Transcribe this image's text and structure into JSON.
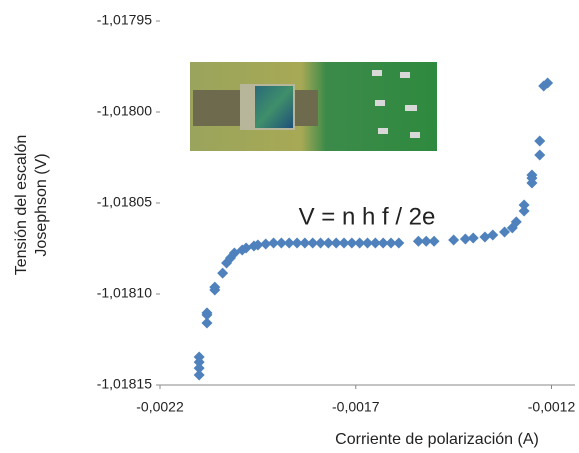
{
  "chart_data": {
    "type": "scatter",
    "xlabel": "Corriente de polarización (A)",
    "ylabel": [
      "Tensión del escalón",
      "Josephson (V)"
    ],
    "annotation": "V = n h f / 2e",
    "color": "#4f81bd",
    "xlim": [
      -0.0022,
      -0.00114
    ],
    "ylim": [
      -1.01815,
      -1.01795
    ],
    "xticks": [
      {
        "value": -0.0022,
        "label": "-0,0022"
      },
      {
        "value": -0.0017,
        "label": "-0,0017"
      },
      {
        "value": -0.0012,
        "label": "-0,0012"
      }
    ],
    "yticks": [
      {
        "value": -1.01815,
        "label": "-1,01815"
      },
      {
        "value": -1.0181,
        "label": "-1,01810"
      },
      {
        "value": -1.01805,
        "label": "-1,01805"
      },
      {
        "value": -1.018,
        "label": "-1,01800"
      },
      {
        "value": -1.01795,
        "label": "-1,01795"
      }
    ],
    "grid": false,
    "x": [
      -0.0021,
      -0.0021,
      -0.0021,
      -0.0021,
      -0.00208,
      -0.00208,
      -0.00208,
      -0.00206,
      -0.00206,
      -0.00204,
      -0.00203,
      -0.00202,
      -0.00201,
      -0.00199,
      -0.00198,
      -0.00196,
      -0.00195,
      -0.00193,
      -0.00191,
      -0.00189,
      -0.00187,
      -0.00185,
      -0.00183,
      -0.00181,
      -0.00179,
      -0.00177,
      -0.00175,
      -0.00173,
      -0.00171,
      -0.00169,
      -0.00167,
      -0.00165,
      -0.00163,
      -0.00161,
      -0.00159,
      -0.00154,
      -0.00152,
      -0.0015,
      -0.00145,
      -0.00142,
      -0.0014,
      -0.00137,
      -0.00135,
      -0.00132,
      -0.0013,
      -0.00129,
      -0.00127,
      -0.00127,
      -0.00125,
      -0.00125,
      -0.00125,
      -0.00123,
      -0.00123,
      -0.00122,
      -0.00121
    ],
    "values": [
      -1.0181445,
      -1.0181407,
      -1.0181374,
      -1.0181346,
      -1.0181159,
      -1.0181115,
      -1.0181104,
      -1.0180978,
      -1.0180962,
      -1.0180885,
      -1.018083,
      -1.0180802,
      -1.0180775,
      -1.0180758,
      -1.0180747,
      -1.0180736,
      -1.0180731,
      -1.0180725,
      -1.018072,
      -1.018072,
      -1.018072,
      -1.018072,
      -1.018072,
      -1.018072,
      -1.018072,
      -1.018072,
      -1.018072,
      -1.018072,
      -1.018072,
      -1.018072,
      -1.018072,
      -1.018072,
      -1.018072,
      -1.018072,
      -1.018072,
      -1.018071,
      -1.018071,
      -1.018071,
      -1.0180703,
      -1.0180698,
      -1.0180692,
      -1.0180687,
      -1.0180676,
      -1.0180659,
      -1.0180637,
      -1.0180604,
      -1.0180544,
      -1.0180511,
      -1.018039,
      -1.0180363,
      -1.0180346,
      -1.0180236,
      -1.0180159,
      -1.0179857,
      -1.0179841
    ]
  }
}
